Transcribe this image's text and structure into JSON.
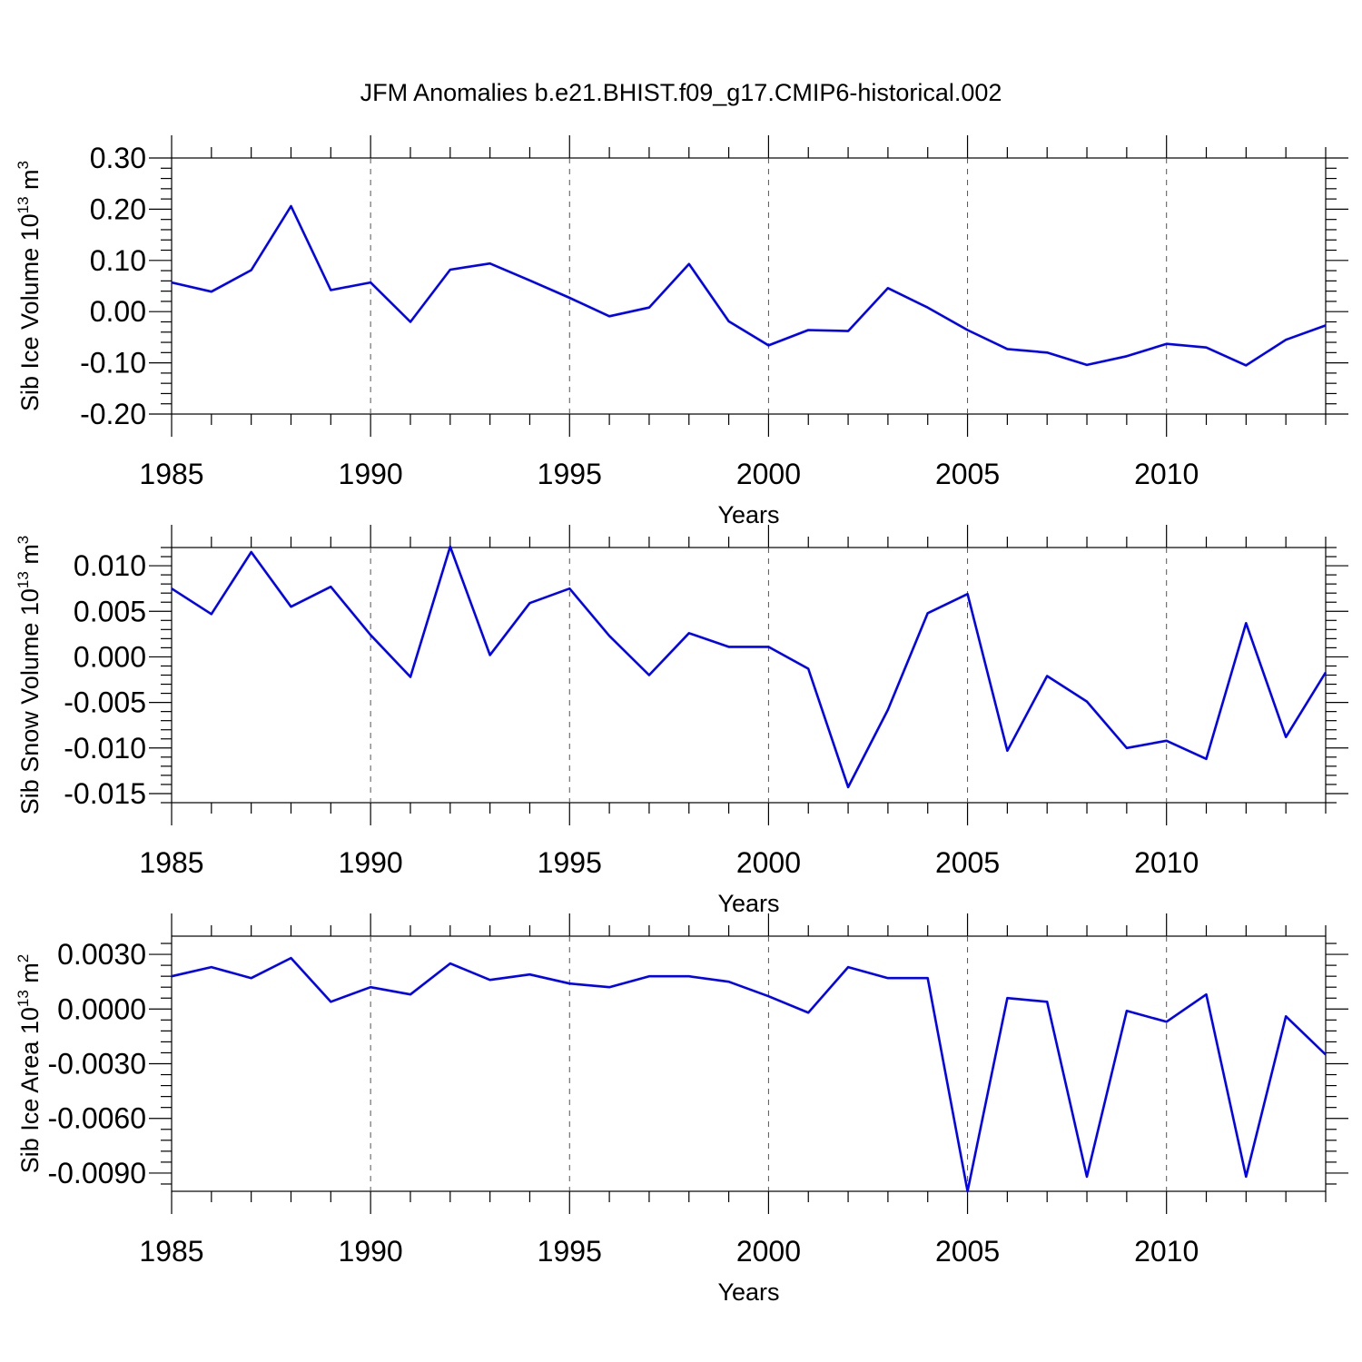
{
  "figure": {
    "title": "JFM Anomalies b.e21.BHIST.f09_g17.CMIP6-historical.002",
    "line_color": "#0000ff"
  },
  "chart_data": [
    {
      "type": "line",
      "ylabel": "Sib Ice Volume 10^13 m^3",
      "ylabel_base": "Sib Ice Volume 10",
      "ylabel_exp": "13",
      "ylabel_unit": " m",
      "ylabel_unit_exp": "3",
      "xlabel": "Years",
      "xlim": [
        1985,
        2014
      ],
      "ylim": [
        -0.2,
        0.3
      ],
      "x_ticks": [
        1985,
        1990,
        1995,
        2000,
        2005,
        2010
      ],
      "x_tick_labels": [
        "1985",
        "1990",
        "1995",
        "2000",
        "2005",
        "2010"
      ],
      "y_ticks": [
        -0.2,
        -0.1,
        0.0,
        0.1,
        0.2,
        0.3
      ],
      "y_tick_labels": [
        "-0.20",
        "-0.10",
        "0.00",
        "0.10",
        "0.20",
        "0.30"
      ],
      "grid_x": true,
      "x": [
        1985,
        1986,
        1987,
        1988,
        1989,
        1990,
        1991,
        1992,
        1993,
        1994,
        1995,
        1996,
        1997,
        1998,
        1999,
        2000,
        2001,
        2002,
        2003,
        2004,
        2005,
        2006,
        2007,
        2008,
        2009,
        2010,
        2011,
        2012,
        2013,
        2014
      ],
      "values": [
        0.057,
        0.039,
        0.081,
        0.206,
        0.042,
        0.057,
        -0.02,
        0.082,
        0.094,
        0.061,
        0.027,
        -0.009,
        0.008,
        0.093,
        -0.019,
        -0.066,
        -0.036,
        -0.038,
        0.046,
        0.008,
        -0.036,
        -0.073,
        -0.08,
        -0.104,
        -0.087,
        -0.063,
        -0.07,
        -0.105,
        -0.055,
        -0.027
      ]
    },
    {
      "type": "line",
      "ylabel": "Sib Snow Volume 10^13 m^3",
      "ylabel_base": "Sib Snow Volume 10",
      "ylabel_exp": "13",
      "ylabel_unit": " m",
      "ylabel_unit_exp": "3",
      "xlabel": "Years",
      "xlim": [
        1985,
        2014
      ],
      "ylim": [
        -0.016,
        0.012
      ],
      "x_ticks": [
        1985,
        1990,
        1995,
        2000,
        2005,
        2010
      ],
      "x_tick_labels": [
        "1985",
        "1990",
        "1995",
        "2000",
        "2005",
        "2010"
      ],
      "y_ticks": [
        -0.015,
        -0.01,
        -0.005,
        0.0,
        0.005,
        0.01
      ],
      "y_tick_labels": [
        "-0.015",
        "-0.010",
        "-0.005",
        "0.000",
        "0.005",
        "0.010"
      ],
      "grid_x": true,
      "x": [
        1985,
        1986,
        1987,
        1988,
        1989,
        1990,
        1991,
        1992,
        1993,
        1994,
        1995,
        1996,
        1997,
        1998,
        1999,
        2000,
        2001,
        2002,
        2003,
        2004,
        2005,
        2006,
        2007,
        2008,
        2009,
        2010,
        2011,
        2012,
        2013,
        2014
      ],
      "values": [
        0.0075,
        0.0047,
        0.0115,
        0.0055,
        0.0077,
        0.0024,
        -0.0022,
        0.0121,
        0.0002,
        0.0059,
        0.0075,
        0.0023,
        -0.002,
        0.0026,
        0.0011,
        0.0011,
        -0.0013,
        -0.0143,
        -0.0058,
        0.0048,
        0.0069,
        -0.0103,
        -0.0021,
        -0.0049,
        -0.01,
        -0.0092,
        -0.0112,
        0.0037,
        -0.0088,
        -0.0017
      ]
    },
    {
      "type": "line",
      "ylabel": "Sib Ice Area 10^13 m^2",
      "ylabel_base": "Sib Ice Area 10",
      "ylabel_exp": "13",
      "ylabel_unit": " m",
      "ylabel_unit_exp": "2",
      "xlabel": "Years",
      "xlim": [
        1985,
        2014
      ],
      "ylim": [
        -0.01,
        0.004
      ],
      "x_ticks": [
        1985,
        1990,
        1995,
        2000,
        2005,
        2010
      ],
      "x_tick_labels": [
        "1985",
        "1990",
        "1995",
        "2000",
        "2005",
        "2010"
      ],
      "y_ticks": [
        -0.009,
        -0.006,
        -0.003,
        0.0,
        0.003
      ],
      "y_tick_labels": [
        "-0.0090",
        "-0.0060",
        "-0.0030",
        "0.0000",
        "0.0030"
      ],
      "grid_x": true,
      "x": [
        1985,
        1986,
        1987,
        1988,
        1989,
        1990,
        1991,
        1992,
        1993,
        1994,
        1995,
        1996,
        1997,
        1998,
        1999,
        2000,
        2001,
        2002,
        2003,
        2004,
        2005,
        2006,
        2007,
        2008,
        2009,
        2010,
        2011,
        2012,
        2013,
        2014
      ],
      "values": [
        0.0018,
        0.0023,
        0.0017,
        0.0028,
        0.0004,
        0.0012,
        0.0008,
        0.0025,
        0.0016,
        0.0019,
        0.0014,
        0.0012,
        0.0018,
        0.0018,
        0.0015,
        0.0007,
        -0.0002,
        0.0023,
        0.0017,
        0.0017,
        -0.01,
        0.0006,
        0.0004,
        -0.0092,
        -0.0001,
        -0.0007,
        0.0008,
        -0.0092,
        -0.0004,
        -0.0025
      ]
    }
  ]
}
